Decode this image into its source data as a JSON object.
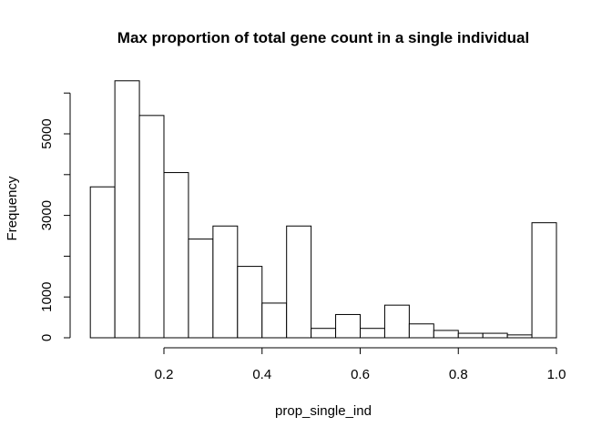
{
  "chart_data": {
    "type": "bar",
    "title": "Max proportion of total gene count in a single individual",
    "xlabel": "prop_single_ind",
    "ylabel": "Frequency",
    "bin_edges": [
      0.05,
      0.1,
      0.15,
      0.2,
      0.25,
      0.3,
      0.35,
      0.4,
      0.45,
      0.5,
      0.55,
      0.6,
      0.65,
      0.7,
      0.75,
      0.8,
      0.85,
      0.9,
      0.95,
      1.0
    ],
    "values": [
      3700,
      6300,
      5450,
      4050,
      2420,
      2740,
      1750,
      850,
      2740,
      230,
      570,
      230,
      800,
      340,
      180,
      110,
      110,
      70,
      2820
    ],
    "x_axis_range": [
      0.2,
      1.0
    ],
    "x_ticks": [
      0.2,
      0.4,
      0.6,
      0.8,
      1.0
    ],
    "x_tick_labels": [
      "0.2",
      "0.4",
      "0.6",
      "0.8",
      "1.0"
    ],
    "y_axis_range": [
      0,
      6000
    ],
    "y_ticks": [
      0,
      1000,
      2000,
      3000,
      4000,
      5000,
      6000
    ],
    "y_tick_labels": [
      "0",
      "1000",
      "",
      "3000",
      "",
      "5000",
      ""
    ],
    "grid": false,
    "legend": "none",
    "bar_fill": "#ffffff",
    "bar_stroke": "#000000"
  }
}
